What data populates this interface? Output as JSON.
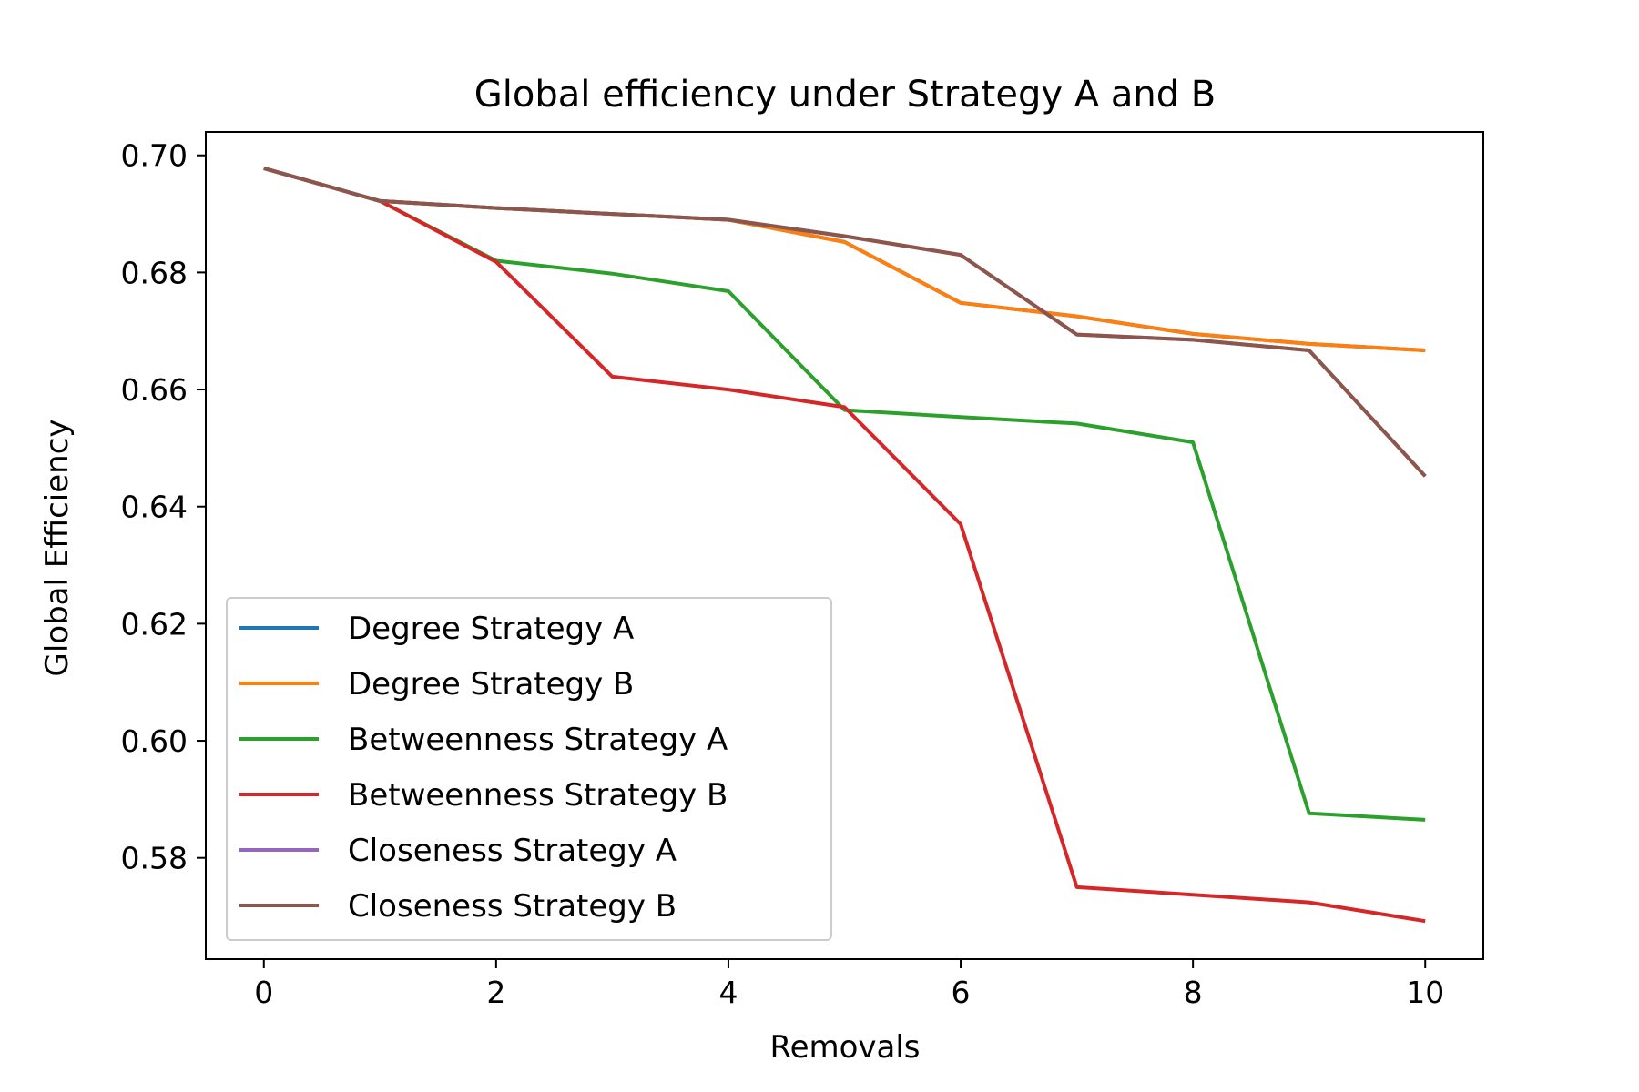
{
  "chart_data": {
    "type": "line",
    "title": "Global efficiency under Strategy A and B",
    "xlabel": "Removals",
    "ylabel": "Global Efficiency",
    "xlim": [
      -0.5,
      10.5
    ],
    "ylim": [
      0.5627,
      0.704
    ],
    "xticks": [
      0,
      2,
      4,
      6,
      8,
      10
    ],
    "xtick_labels": [
      "0",
      "2",
      "4",
      "6",
      "8",
      "10"
    ],
    "yticks": [
      0.58,
      0.6,
      0.62,
      0.64,
      0.66,
      0.68,
      0.7
    ],
    "ytick_labels": [
      "0.58",
      "0.60",
      "0.62",
      "0.64",
      "0.66",
      "0.68",
      "0.70"
    ],
    "grid": false,
    "legend_position": "lower-left",
    "x": [
      0,
      1,
      2,
      3,
      4,
      5,
      6,
      7,
      8,
      9,
      10
    ],
    "series": [
      {
        "name": "Degree Strategy A",
        "color": "#1f77b4",
        "values": [
          0.6978,
          0.6922,
          0.691,
          0.69,
          0.689,
          0.6852,
          0.6748,
          0.6725,
          0.6695,
          0.6678,
          0.6667
        ]
      },
      {
        "name": "Degree Strategy B",
        "color": "#ff7f0e",
        "values": [
          0.6978,
          0.6922,
          0.691,
          0.69,
          0.689,
          0.6852,
          0.6748,
          0.6725,
          0.6695,
          0.6678,
          0.6667
        ]
      },
      {
        "name": "Betweenness Strategy A",
        "color": "#2ca02c",
        "values": [
          0.6978,
          0.6922,
          0.682,
          0.6798,
          0.6768,
          0.6565,
          0.6553,
          0.6542,
          0.651,
          0.5876,
          0.5865
        ]
      },
      {
        "name": "Betweenness Strategy B",
        "color": "#d62728",
        "values": [
          0.6978,
          0.6922,
          0.6818,
          0.6622,
          0.66,
          0.657,
          0.637,
          0.575,
          0.5737,
          0.5724,
          0.5692
        ]
      },
      {
        "name": "Closeness Strategy A",
        "color": "#9467bd",
        "values": [
          0.6978,
          0.6922,
          0.691,
          0.69,
          0.689,
          0.6862,
          0.683,
          0.6694,
          0.6685,
          0.6667,
          0.6452
        ]
      },
      {
        "name": "Closeness Strategy B",
        "color": "#8c564b",
        "values": [
          0.6978,
          0.6922,
          0.691,
          0.69,
          0.689,
          0.6862,
          0.683,
          0.6694,
          0.6685,
          0.6667,
          0.6452
        ]
      }
    ]
  }
}
